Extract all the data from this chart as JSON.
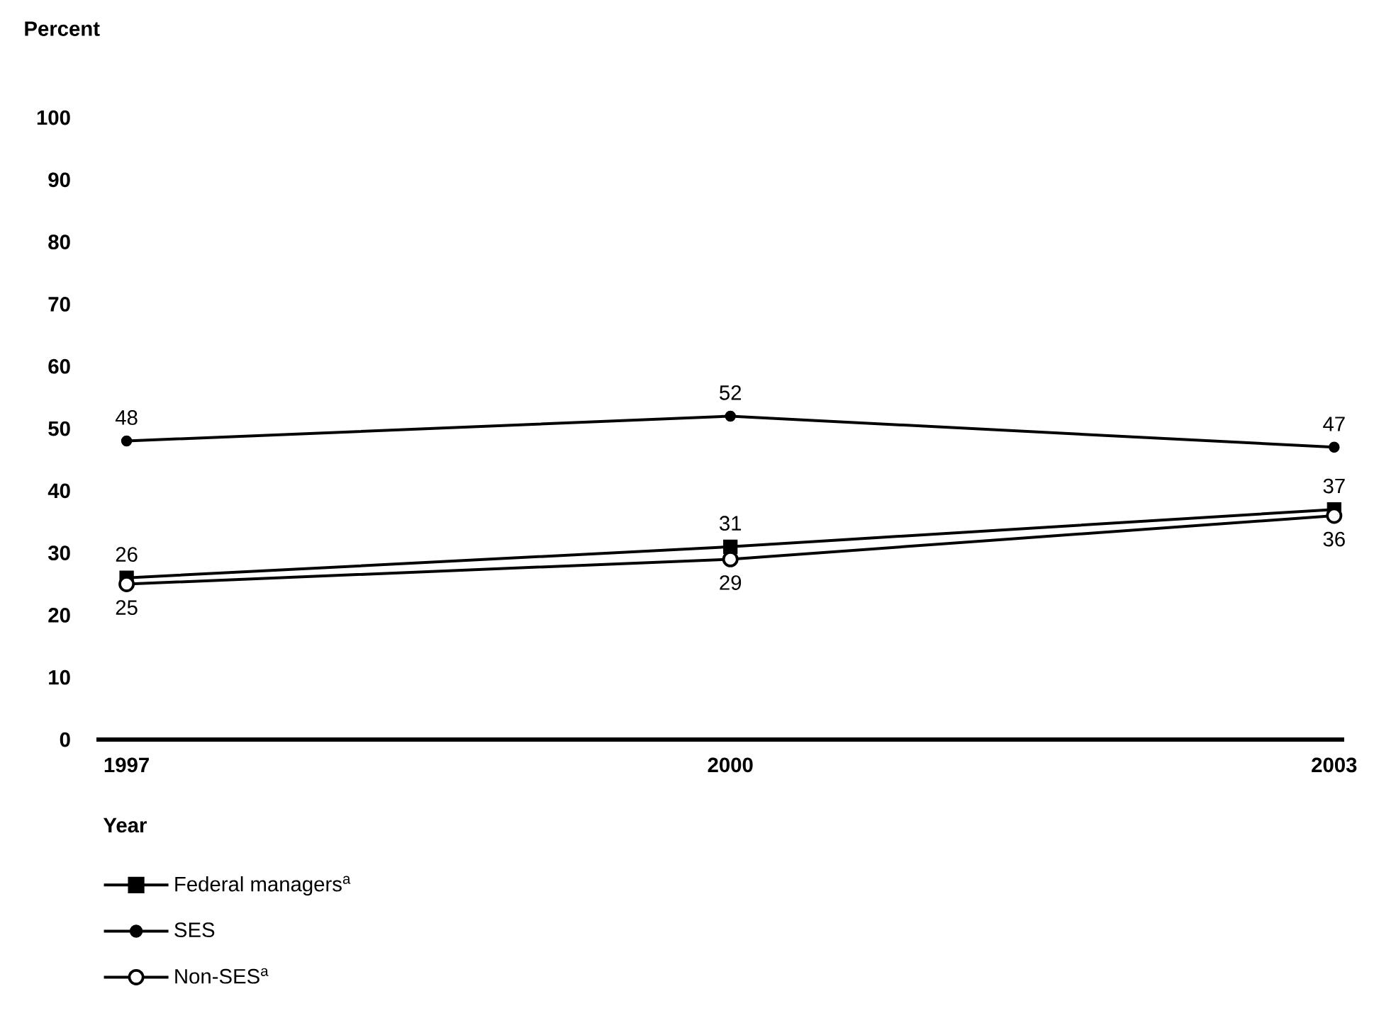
{
  "chart_data": {
    "type": "line",
    "xlabel": "Year",
    "ylabel": "Percent",
    "x": [
      1997,
      2000,
      2003
    ],
    "xlim": [
      1996.85,
      2003.05
    ],
    "xticks": [
      1997,
      2000,
      2003
    ],
    "ylim": [
      0,
      100
    ],
    "yticks": [
      0,
      10,
      20,
      30,
      40,
      50,
      60,
      70,
      80,
      90,
      100
    ],
    "grid": false,
    "legend": "bottom left",
    "data_labels": true,
    "line_style": "solid",
    "series": [
      {
        "name": "Federal managers$^{a}$",
        "color": "#000000",
        "marker": "square",
        "values": [
          26,
          31,
          37
        ]
      },
      {
        "name": "SES",
        "color": "#000000",
        "marker": "circle",
        "values": [
          48,
          52,
          47
        ]
      },
      {
        "name": "Non-SES$^{a}$",
        "color": "#000000",
        "marker": "circle",
        "colors": [
          "#ffffff",
          "#ffffff",
          "#ffffff"
        ],
        "values": [
          25,
          29,
          36
        ]
      }
    ]
  }
}
